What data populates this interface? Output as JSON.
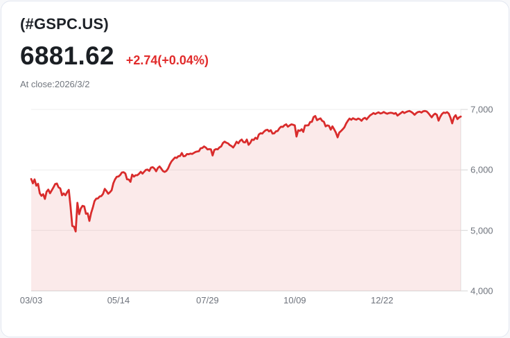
{
  "header": {
    "symbol": "(#GSPC.US)",
    "price": "6881.62",
    "change": "+2.74(+0.04%)",
    "as_of": "At close:2026/3/2"
  },
  "colors": {
    "line": "#d92c2c",
    "area_fill": "rgba(216,48,48,0.10)",
    "change_text": "#e12b2b",
    "grid": "#ededed",
    "axis": "#d6d6d6",
    "right_axis": "#e4e4e4",
    "tick_label": "#6e737c"
  },
  "chart_data": {
    "type": "area",
    "title": "#GSPC.US close price, 03/03 to 03/02 (next year)",
    "xlabel": "",
    "ylabel": "",
    "ylim": [
      4000,
      7000
    ],
    "grid": true,
    "legend_position": "none",
    "y_ticks": [
      {
        "value": 7000,
        "label": "7,000"
      },
      {
        "value": 6000,
        "label": "6,000"
      },
      {
        "value": 5000,
        "label": "5,000"
      },
      {
        "value": 4000,
        "label": "4,000"
      }
    ],
    "x_ticks": [
      {
        "index": 0,
        "label": "03/03"
      },
      {
        "index": 51,
        "label": "05/14"
      },
      {
        "index": 103,
        "label": "07/29"
      },
      {
        "index": 154,
        "label": "10/09"
      },
      {
        "index": 205,
        "label": "12/22"
      }
    ],
    "last_value": 6881.62,
    "values": [
      5850,
      5778,
      5843,
      5739,
      5770,
      5615,
      5572,
      5599,
      5521,
      5638,
      5675,
      5614,
      5662,
      5711,
      5767,
      5776,
      5712,
      5694,
      5581,
      5612,
      5580,
      5633,
      5671,
      5396,
      5074,
      5062,
      4983,
      5457,
      5268,
      5363,
      5406,
      5397,
      5276,
      5283,
      5158,
      5288,
      5376,
      5485,
      5525,
      5529,
      5561,
      5569,
      5604,
      5687,
      5650,
      5607,
      5631,
      5664,
      5780,
      5844,
      5887,
      5892,
      5916,
      5958,
      5963,
      5941,
      5845,
      5842,
      5803,
      5922,
      5889,
      5912,
      5912,
      5936,
      5970,
      5939,
      5970,
      6000,
      6006,
      5983,
      6038,
      6045,
      6023,
      5977,
      6033,
      6058,
      6022,
      5981,
      5967,
      5983,
      6025,
      6092,
      6141,
      6173,
      6205,
      6198,
      6227,
      6230,
      6280,
      6226,
      6230,
      6263,
      6259,
      6269,
      6264,
      6281,
      6297,
      6305,
      6309,
      6358,
      6363,
      6389,
      6370,
      6339,
      6345,
      6340,
      6238,
      6330,
      6345,
      6340,
      6373,
      6389,
      6445,
      6467,
      6450,
      6439,
      6412,
      6395,
      6370,
      6412,
      6466,
      6440,
      6481,
      6502,
      6460,
      6455,
      6502,
      6415,
      6448,
      6502,
      6495,
      6532,
      6512,
      6584,
      6606,
      6600,
      6632,
      6656,
      6664,
      6637,
      6657,
      6602,
      6605,
      6638,
      6644,
      6688,
      6715,
      6711,
      6740,
      6754,
      6715,
      6735,
      6754,
      6747,
      6736,
      6552,
      6655,
      6645,
      6672,
      6629,
      6736,
      6735,
      6739,
      6792,
      6795,
      6875,
      6891,
      6822,
      6840,
      6852,
      6812,
      6796,
      6721,
      6737,
      6729,
      6666,
      6721,
      6673,
      6618,
      6538,
      6617,
      6643,
      6673,
      6705,
      6766,
      6812,
      6849,
      6829,
      6855,
      6840,
      6830,
      6850,
      6838,
      6812,
      6846,
      6861,
      6835,
      6871,
      6902,
      6920,
      6940,
      6925,
      6940,
      6952,
      6932,
      6940,
      6958,
      6940,
      6929,
      6940,
      6945,
      6942,
      6928,
      6940,
      6898,
      6920,
      6940,
      6962,
      6940,
      6956,
      6968,
      6975,
      6960,
      6940,
      6912,
      6940,
      6958,
      6962,
      6948,
      6970,
      6975,
      6968,
      6940,
      6905,
      6870,
      6910,
      6930,
      6912,
      6815,
      6880,
      6925,
      6948,
      6940,
      6955,
      6930,
      6860,
      6770,
      6870,
      6905,
      6840,
      6868,
      6881.62
    ]
  }
}
